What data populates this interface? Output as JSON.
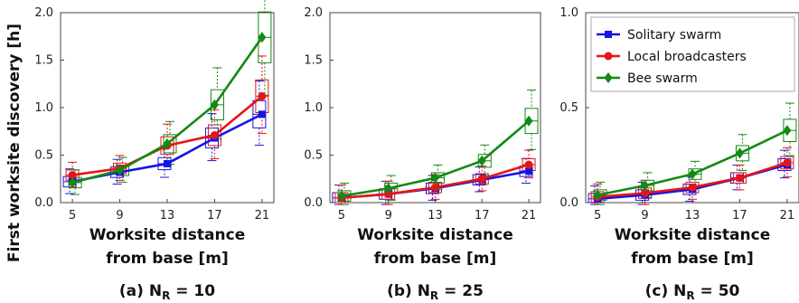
{
  "y_axis_label": "First worksite discovery [h]",
  "legend": [
    {
      "label": "Solitary swarm",
      "color": "#1515e6",
      "marker": "square"
    },
    {
      "label": "Local broadcasters",
      "color": "#e61515",
      "marker": "circle"
    },
    {
      "label": "Bee swarm",
      "color": "#138a13",
      "marker": "diamond"
    }
  ],
  "chart_data": [
    {
      "type": "line",
      "caption_prefix": "(a) N",
      "caption_sub": "R",
      "caption_suffix": " = 10",
      "xlabel_line1": "Worksite distance",
      "xlabel_line2": "from base [m]",
      "x": [
        5,
        9,
        13,
        17,
        21
      ],
      "x_ticks": [
        "5",
        "9",
        "13",
        "17",
        "21"
      ],
      "ylim": [
        0,
        2.0
      ],
      "y_ticks": [
        "0.0",
        "0.5",
        "1.0",
        "1.5",
        "2.0"
      ],
      "series": [
        {
          "name": "Solitary swarm",
          "values": [
            0.22,
            0.32,
            0.41,
            0.68,
            0.93
          ]
        },
        {
          "name": "Local broadcasters",
          "values": [
            0.29,
            0.36,
            0.6,
            0.71,
            1.12
          ]
        },
        {
          "name": "Bee swarm",
          "values": [
            0.21,
            0.34,
            0.62,
            1.03,
            1.74
          ]
        }
      ]
    },
    {
      "type": "line",
      "caption_prefix": "(b) N",
      "caption_sub": "R",
      "caption_suffix": " = 25",
      "xlabel_line1": "Worksite distance",
      "xlabel_line2": "from base [m]",
      "x": [
        5,
        9,
        13,
        17,
        21
      ],
      "x_ticks": [
        "5",
        "9",
        "13",
        "17",
        "21"
      ],
      "ylim": [
        0,
        2.0
      ],
      "y_ticks": [
        "0.0",
        "0.5",
        "1.0",
        "1.5",
        "2.0"
      ],
      "series": [
        {
          "name": "Solitary swarm",
          "values": [
            0.05,
            0.09,
            0.15,
            0.24,
            0.33
          ]
        },
        {
          "name": "Local broadcasters",
          "values": [
            0.05,
            0.09,
            0.16,
            0.25,
            0.4
          ]
        },
        {
          "name": "Bee swarm",
          "values": [
            0.07,
            0.15,
            0.26,
            0.44,
            0.86
          ]
        }
      ]
    },
    {
      "type": "line",
      "caption_prefix": "(c) N",
      "caption_sub": "R",
      "caption_suffix": " = 50",
      "xlabel_line1": "Worksite distance",
      "xlabel_line2": "from base [m]",
      "x": [
        5,
        9,
        13,
        17,
        21
      ],
      "x_ticks": [
        "5",
        "9",
        "13",
        "17",
        "21"
      ],
      "ylim": [
        0,
        1.0
      ],
      "y_ticks": [
        "0.0",
        "0.5",
        "1.0"
      ],
      "series": [
        {
          "name": "Solitary swarm",
          "values": [
            0.02,
            0.04,
            0.07,
            0.13,
            0.2
          ]
        },
        {
          "name": "Local broadcasters",
          "values": [
            0.03,
            0.05,
            0.08,
            0.13,
            0.21
          ]
        },
        {
          "name": "Bee swarm",
          "values": [
            0.04,
            0.09,
            0.15,
            0.26,
            0.38
          ]
        }
      ]
    }
  ]
}
